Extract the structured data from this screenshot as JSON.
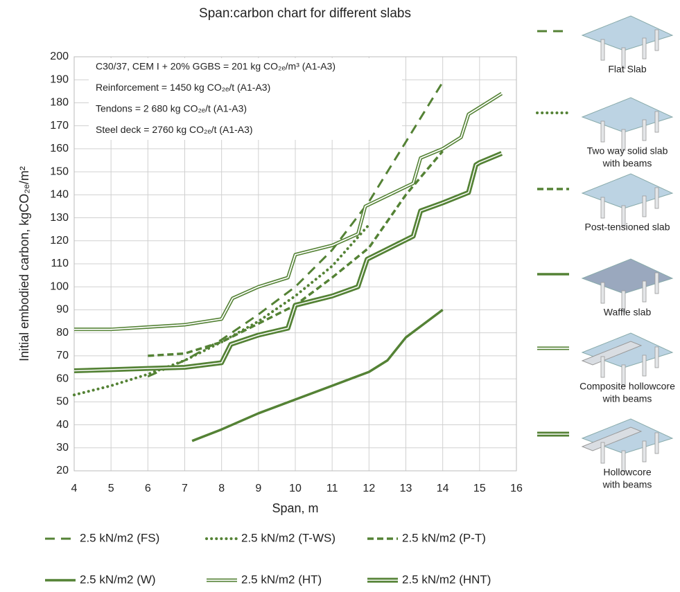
{
  "chart_data": {
    "type": "line",
    "title": "Span:carbon chart for different slabs",
    "x_label": "Span, m",
    "y_label": "Initial embodied carbon, kgCO₂ₑ/m²",
    "annotations": [
      "C30/37, CEM I + 20% GGBS = 201 kg CO₂ₑ/m³ (A1-A3)",
      "Reinforcement  = 1450 kg CO₂ₑ/t (A1-A3)",
      "Tendons = 2 680 kg CO₂ₑ/t (A1-A3)",
      "Steel deck = 2760 kg CO₂ₑ/t (A1-A3)"
    ],
    "xlim": [
      4,
      16
    ],
    "xticks": [
      4,
      5,
      6,
      7,
      8,
      9,
      10,
      11,
      12,
      13,
      14,
      15,
      16
    ],
    "ylim": [
      20,
      200
    ],
    "yticks": [
      20,
      30,
      40,
      50,
      60,
      70,
      80,
      90,
      100,
      110,
      120,
      130,
      140,
      150,
      160,
      170,
      180,
      190,
      200
    ],
    "grid": true,
    "legend": "bottom",
    "series": [
      {
        "name": "2.5 kN/m2 (FS)",
        "color": "#548235",
        "style": "long-dash",
        "x": [
          6,
          7,
          8,
          9,
          10,
          11,
          12,
          13,
          14
        ],
        "values": [
          61,
          68,
          77,
          88,
          100,
          116,
          137,
          163,
          189
        ]
      },
      {
        "name": "2.5 kN/m2 (T-WS)",
        "color": "#548235",
        "style": "dot",
        "x": [
          4,
          5,
          6,
          7,
          8,
          9,
          10,
          11,
          12
        ],
        "values": [
          53,
          57,
          62,
          68,
          76,
          85,
          96,
          109,
          127
        ]
      },
      {
        "name": "2.5 kN/m2 (P-T)",
        "color": "#548235",
        "style": "short-dash",
        "x": [
          6,
          7,
          8,
          9,
          10,
          11,
          12,
          13,
          14
        ],
        "values": [
          70,
          71,
          76,
          84,
          92,
          104,
          117,
          140,
          159
        ]
      },
      {
        "name": "2.5 kN/m2 (W)",
        "color": "#548235",
        "style": "solid",
        "x": [
          7.2,
          8,
          9,
          10,
          11,
          12,
          12.5,
          13,
          13.5,
          14
        ],
        "values": [
          33,
          38,
          45,
          51,
          57,
          63,
          68,
          78,
          84,
          90
        ]
      },
      {
        "name": "2.5 kN/m2 (HT)",
        "color": "#548235",
        "style": "double",
        "x": [
          4,
          5,
          6,
          7,
          8,
          8.3,
          9,
          9.8,
          10,
          11,
          11.7,
          11.9,
          13.2,
          13.4,
          14,
          14.5,
          14.7,
          15,
          15.6
        ],
        "values": [
          81.5,
          81.5,
          82.5,
          83.5,
          86,
          95,
          100,
          104,
          114,
          118,
          123,
          135,
          145,
          156,
          160,
          165,
          175,
          178,
          184
        ]
      },
      {
        "name": "2.5 kN/m2 (HNT)",
        "color": "#548235",
        "style": "double-thick",
        "x": [
          4,
          5,
          6,
          7,
          8,
          8.25,
          9,
          9.8,
          10,
          11,
          11.7,
          11.95,
          13.2,
          13.4,
          14,
          14.7,
          14.9,
          15,
          15.6
        ],
        "values": [
          63.5,
          64,
          64.5,
          65,
          67,
          75,
          79,
          82,
          92,
          96,
          100,
          112,
          122,
          133,
          136.5,
          141,
          153,
          154,
          158
        ]
      }
    ],
    "slab_legend": [
      {
        "style": "long-dash",
        "label": [
          "Flat Slab"
        ]
      },
      {
        "style": "dot",
        "label": [
          "Two way solid slab",
          "with beams"
        ]
      },
      {
        "style": "short-dash",
        "label": [
          "Post-tensioned slab"
        ]
      },
      {
        "style": "solid",
        "label": [
          "Waffle slab"
        ]
      },
      {
        "style": "double",
        "label": [
          "Composite hollowcore",
          "with beams"
        ]
      },
      {
        "style": "double-thick",
        "label": [
          "Hollowcore",
          "with beams"
        ]
      }
    ]
  }
}
